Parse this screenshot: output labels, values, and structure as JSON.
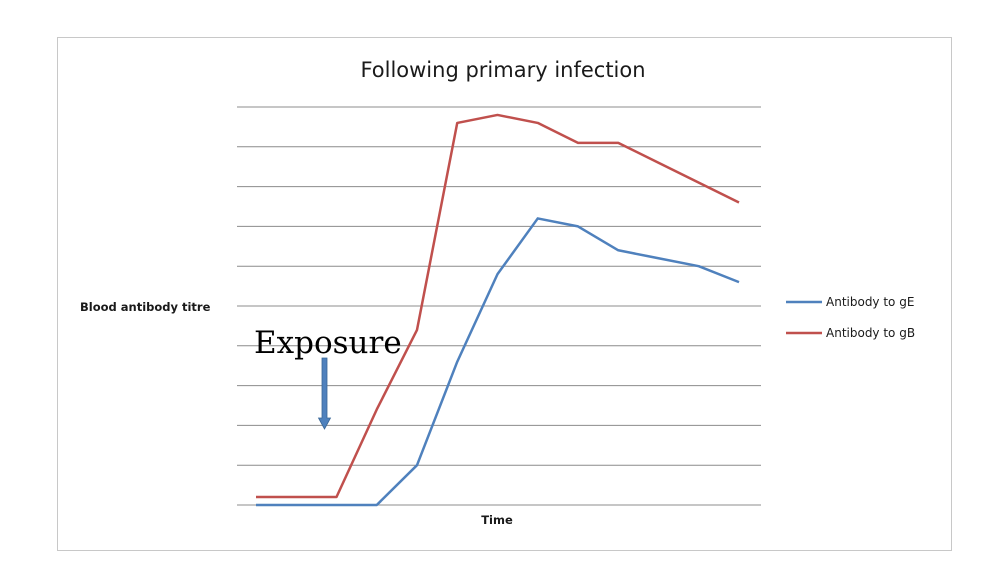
{
  "chart_data": {
    "type": "line",
    "title": "Following primary infection",
    "xlabel": "Time",
    "ylabel": "Blood antibody titre",
    "x_points": 13,
    "ylim": [
      0,
      100
    ],
    "grid": true,
    "legend_position": "right",
    "series": [
      {
        "name": "Antibody to gE",
        "color": "#4f81bd",
        "values": [
          0,
          0,
          0,
          0,
          10,
          36,
          58,
          72,
          70,
          64,
          62,
          60,
          56
        ]
      },
      {
        "name": "Antibody to gB",
        "color": "#c0504d",
        "values": [
          2,
          2,
          2,
          24,
          44,
          96,
          98,
          96,
          91,
          91,
          86,
          81,
          76
        ]
      }
    ],
    "annotations": [
      {
        "text": "Exposure",
        "at_x_index": 2,
        "arrow": "down",
        "arrow_color": "#4f81bd"
      }
    ]
  }
}
